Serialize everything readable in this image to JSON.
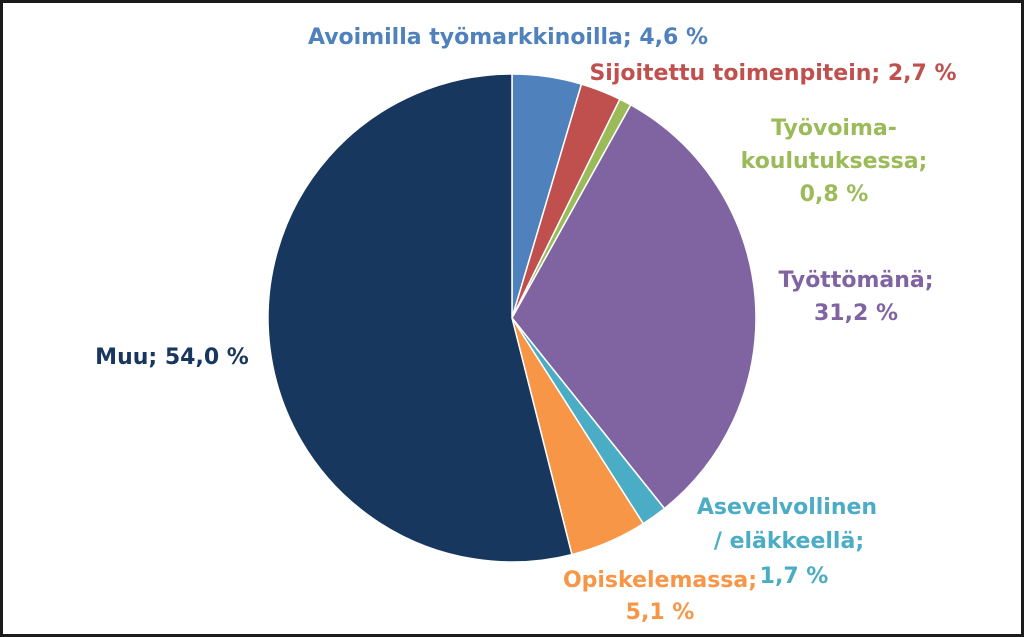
{
  "chart_data": {
    "type": "pie",
    "title": "",
    "slices": [
      {
        "label_lines": [
          "Avoimilla työmarkkinoilla; 4,6 %"
        ],
        "value": 4.6,
        "color": "#4f81bd"
      },
      {
        "label_lines": [
          "Sijoitettu toimenpitein; 2,7 %"
        ],
        "value": 2.7,
        "color": "#c0504d"
      },
      {
        "label_lines": [
          "Työvoima-",
          "koulutuksessa;",
          "0,8 %"
        ],
        "value": 0.8,
        "color": "#9bbb59"
      },
      {
        "label_lines": [
          "Työttömänä;",
          "31,2 %"
        ],
        "value": 31.2,
        "color": "#8064a2"
      },
      {
        "label_lines": [
          "Asevelvollinen",
          "/ eläkkeellä;",
          "1,7 %"
        ],
        "value": 1.7,
        "color": "#4bacc6"
      },
      {
        "label_lines": [
          "Opiskelemassa;",
          "5,1 %"
        ],
        "value": 5.1,
        "color": "#f79646"
      },
      {
        "label_lines": [
          "Muu; 54,0 %"
        ],
        "value": 54.0,
        "color": "#17375e"
      }
    ],
    "label_colors": [
      "#4f81bd",
      "#c0504d",
      "#9bbb59",
      "#8064a2",
      "#4bacc6",
      "#f79646",
      "#17375e"
    ],
    "start_angle_deg": 0,
    "direction": "clockwise",
    "legend": "none"
  }
}
